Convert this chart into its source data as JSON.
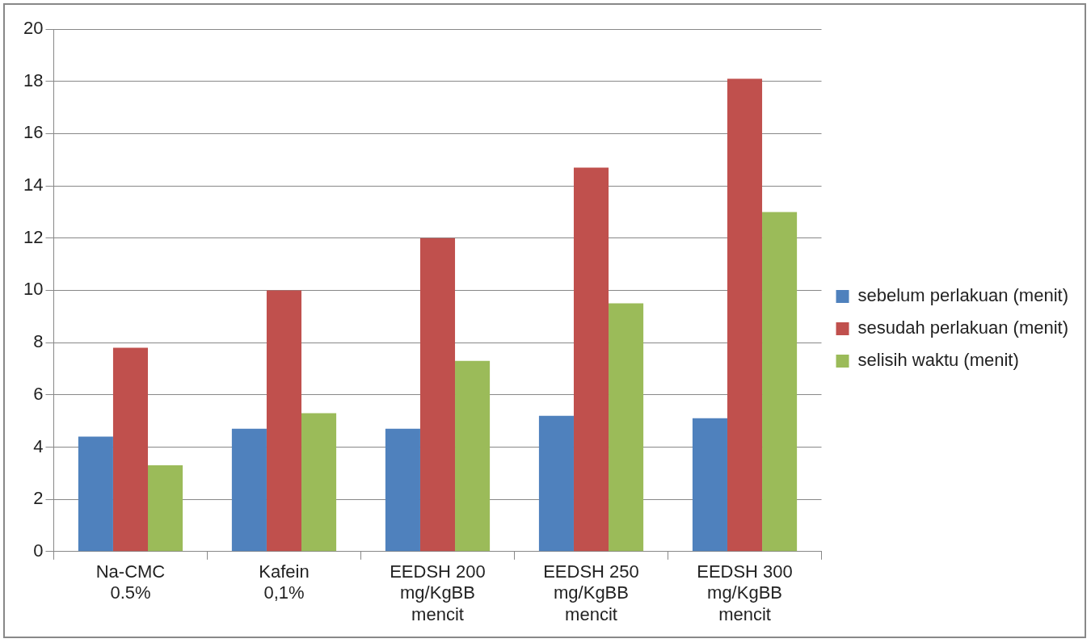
{
  "chart_data": {
    "type": "bar",
    "categories": [
      "Na-CMC\n0.5%",
      "Kafein\n0,1%",
      "EEDSH 200\nmg/KgBB\nmencit",
      "EEDSH 250\nmg/KgBB\nmencit",
      "EEDSH 300\nmg/KgBB\nmencit"
    ],
    "series": [
      {
        "name": "sebelum perlakuan (menit)",
        "color": "#4f81bd",
        "values": [
          4.4,
          4.7,
          4.7,
          5.2,
          5.1
        ]
      },
      {
        "name": "sesudah perlakuan (menit)",
        "color": "#c0504d",
        "values": [
          7.8,
          10.0,
          12.0,
          14.7,
          18.1
        ]
      },
      {
        "name": "selisih waktu (menit)",
        "color": "#9bbb59",
        "values": [
          3.3,
          5.3,
          7.3,
          9.5,
          13.0
        ]
      }
    ],
    "ylim": [
      0,
      20
    ],
    "yticks": [
      0,
      2,
      4,
      6,
      8,
      10,
      12,
      14,
      16,
      18,
      20
    ],
    "grid": "y",
    "legend": "right"
  }
}
